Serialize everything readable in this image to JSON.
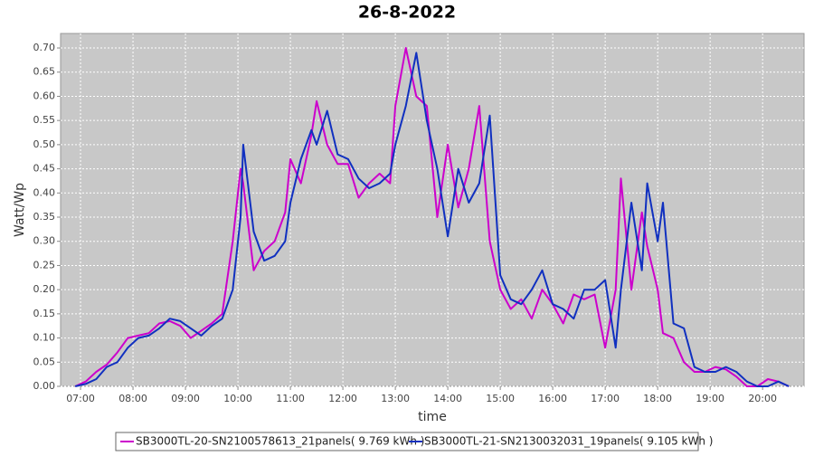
{
  "chart_data": {
    "type": "line",
    "title": "26-8-2022",
    "x_label": "time",
    "y_label": "Watt/Wp",
    "x": [
      6.9,
      7.1,
      7.3,
      7.5,
      7.7,
      7.9,
      8.1,
      8.3,
      8.5,
      8.7,
      8.9,
      9.1,
      9.3,
      9.5,
      9.7,
      9.9,
      10.05,
      10.1,
      10.3,
      10.5,
      10.7,
      10.9,
      11.0,
      11.2,
      11.4,
      11.5,
      11.7,
      11.9,
      12.1,
      12.3,
      12.5,
      12.7,
      12.9,
      13.0,
      13.2,
      13.4,
      13.6,
      13.8,
      14.0,
      14.2,
      14.4,
      14.6,
      14.8,
      15.0,
      15.2,
      15.4,
      15.6,
      15.8,
      16.0,
      16.2,
      16.4,
      16.6,
      16.8,
      17.0,
      17.2,
      17.3,
      17.5,
      17.7,
      17.8,
      18.0,
      18.1,
      18.3,
      18.5,
      18.7,
      18.9,
      19.1,
      19.3,
      19.5,
      19.7,
      19.9,
      20.1,
      20.3,
      20.5
    ],
    "series": [
      {
        "name": "SB3000TL-20-SN2100578613_21panels( 9.769 kWh )",
        "color": "#cc00cc",
        "values": [
          0,
          0.01,
          0.03,
          0.045,
          0.07,
          0.1,
          0.105,
          0.11,
          0.13,
          0.135,
          0.125,
          0.1,
          0.115,
          0.13,
          0.15,
          0.3,
          0.45,
          0.42,
          0.24,
          0.28,
          0.3,
          0.36,
          0.47,
          0.42,
          0.52,
          0.59,
          0.5,
          0.46,
          0.46,
          0.39,
          0.42,
          0.44,
          0.42,
          0.58,
          0.7,
          0.6,
          0.58,
          0.35,
          0.5,
          0.37,
          0.45,
          0.58,
          0.3,
          0.2,
          0.16,
          0.18,
          0.14,
          0.2,
          0.17,
          0.13,
          0.19,
          0.18,
          0.19,
          0.08,
          0.2,
          0.43,
          0.2,
          0.36,
          0.29,
          0.2,
          0.11,
          0.1,
          0.05,
          0.03,
          0.03,
          0.04,
          0.035,
          0.02,
          0,
          0,
          0.015,
          0.01,
          0
        ]
      },
      {
        "name": "SB3000TL-21-SN2130032031_19panels( 9.105 kWh )",
        "color": "#1030c0",
        "values": [
          0,
          0.005,
          0.015,
          0.04,
          0.05,
          0.08,
          0.1,
          0.105,
          0.12,
          0.14,
          0.135,
          0.12,
          0.105,
          0.125,
          0.14,
          0.2,
          0.35,
          0.5,
          0.32,
          0.26,
          0.27,
          0.3,
          0.38,
          0.47,
          0.53,
          0.5,
          0.57,
          0.48,
          0.47,
          0.43,
          0.41,
          0.42,
          0.44,
          0.5,
          0.58,
          0.69,
          0.55,
          0.45,
          0.31,
          0.45,
          0.38,
          0.42,
          0.56,
          0.23,
          0.18,
          0.17,
          0.2,
          0.24,
          0.17,
          0.16,
          0.14,
          0.2,
          0.2,
          0.22,
          0.08,
          0.2,
          0.38,
          0.24,
          0.42,
          0.3,
          0.38,
          0.13,
          0.12,
          0.04,
          0.03,
          0.03,
          0.04,
          0.03,
          0.01,
          0,
          0,
          0.01,
          0
        ]
      }
    ],
    "xlim": [
      6.62,
      20.79
    ],
    "xticks": [
      {
        "value": 7,
        "label": "07:00"
      },
      {
        "value": 8,
        "label": "08:00"
      },
      {
        "value": 9,
        "label": "09:00"
      },
      {
        "value": 10,
        "label": "10:00"
      },
      {
        "value": 11,
        "label": "11:00"
      },
      {
        "value": 12,
        "label": "12:00"
      },
      {
        "value": 13,
        "label": "13:00"
      },
      {
        "value": 14,
        "label": "14:00"
      },
      {
        "value": 15,
        "label": "15:00"
      },
      {
        "value": 16,
        "label": "16:00"
      },
      {
        "value": 17,
        "label": "17:00"
      },
      {
        "value": 18,
        "label": "18:00"
      },
      {
        "value": 19,
        "label": "19:00"
      },
      {
        "value": 20,
        "label": "20:00"
      }
    ],
    "ylim": [
      0,
      0.73
    ],
    "yticks": [
      {
        "value": 0,
        "label": "0.00"
      },
      0.05,
      {
        "value": 0.1,
        "label": "0.10"
      },
      0.15,
      {
        "value": 0.2,
        "label": "0.20"
      },
      0.25,
      {
        "value": 0.3,
        "label": "0.30"
      },
      0.35,
      {
        "value": 0.4,
        "label": "0.40"
      },
      0.45,
      {
        "value": 0.5,
        "label": "0.50"
      },
      0.55,
      {
        "value": 0.6,
        "label": "0.60"
      },
      0.65,
      {
        "value": 0.7,
        "label": "0.70"
      }
    ],
    "grid": true
  }
}
